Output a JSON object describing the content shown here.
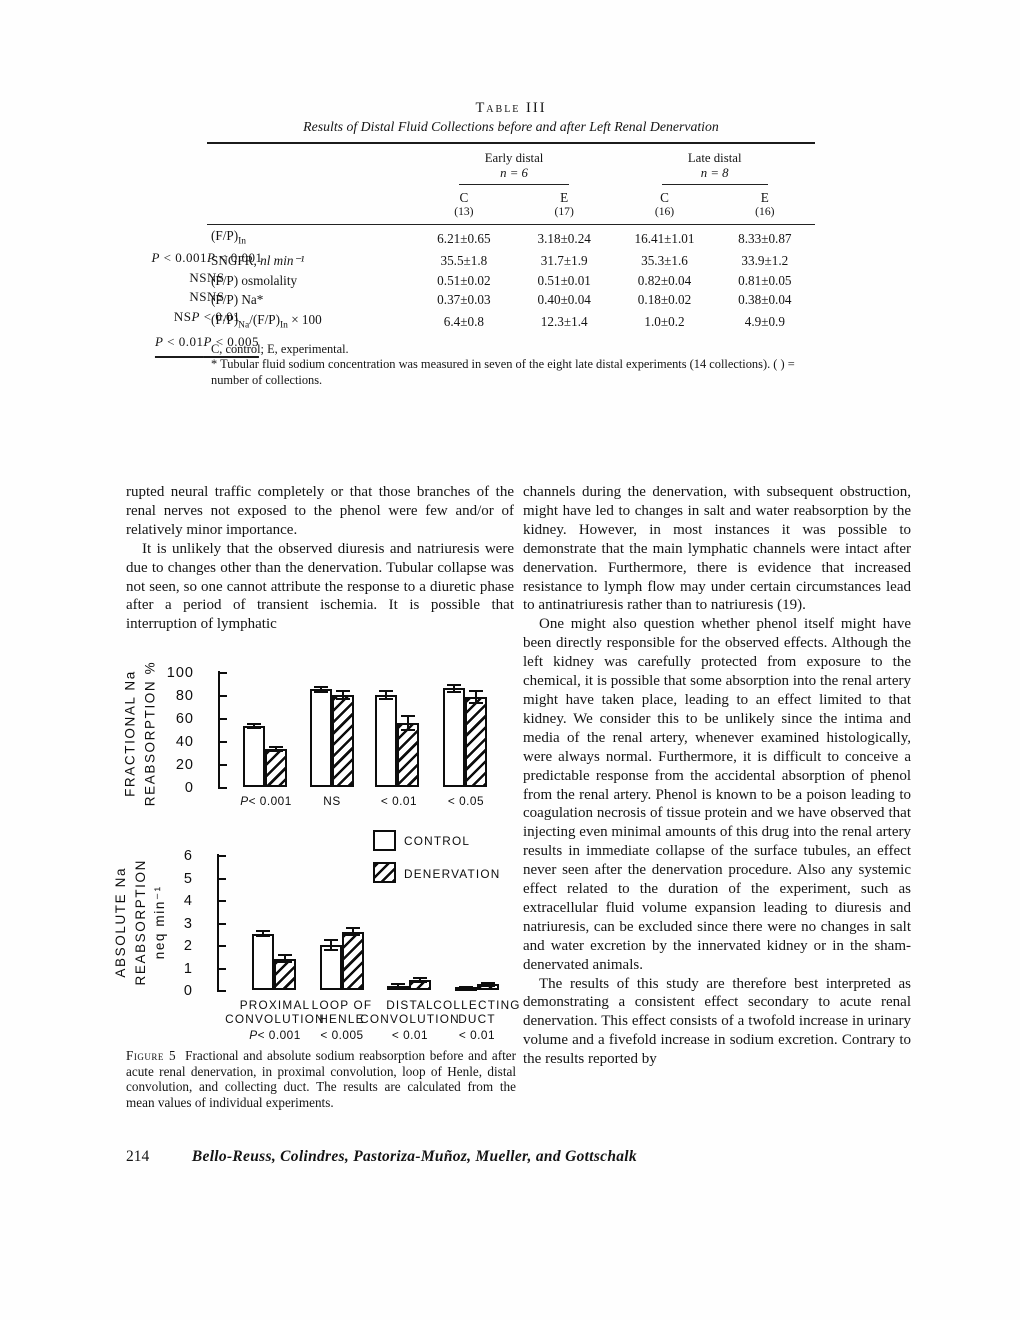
{
  "table": {
    "title": "Table III",
    "subtitle": "Results of Distal Fluid Collections before and after Left Renal Denervation",
    "groups": [
      {
        "label": "Early distal",
        "n": "n = 6"
      },
      {
        "label": "Late distal",
        "n": "n = 8"
      }
    ],
    "col_headers": [
      {
        "letter": "C",
        "count": "(13)"
      },
      {
        "letter": "E",
        "count": "(17)"
      },
      {
        "letter": "C",
        "count": "(16)"
      },
      {
        "letter": "E",
        "count": "(16)"
      }
    ],
    "rows": [
      {
        "label_segments": [
          {
            "t": "(F/P)"
          },
          {
            "t": "In",
            "sub": true
          }
        ],
        "early_c": "6.21±0.65",
        "early_e": "3.18±0.24",
        "early_p": "P < 0.001",
        "late_c": "16.41±1.01",
        "late_e": "8.33±0.87",
        "late_p": "P < 0.001"
      },
      {
        "label_segments": [
          {
            "t": "SNGFR, "
          },
          {
            "t": "nl min⁻¹",
            "it": true
          }
        ],
        "early_c": "35.5±1.8",
        "early_e": "31.7±1.9",
        "early_p": "NS",
        "late_c": "35.3±1.6",
        "late_e": "33.9±1.2",
        "late_p": "NS"
      },
      {
        "label_segments": [
          {
            "t": "(F/P) osmolality"
          }
        ],
        "early_c": "0.51±0.02",
        "early_e": "0.51±0.01",
        "early_p": "NS",
        "late_c": "0.82±0.04",
        "late_e": "0.81±0.05",
        "late_p": "NS"
      },
      {
        "label_segments": [
          {
            "t": "(F/P) Na*"
          }
        ],
        "early_c": "0.37±0.03",
        "early_e": "0.40±0.04",
        "early_p": "NS",
        "late_c": "0.18±0.02",
        "late_e": "0.38±0.04",
        "late_p": "P < 0.01"
      },
      {
        "label_segments": [
          {
            "t": "(F/P)"
          },
          {
            "t": "Na",
            "sub": true
          },
          {
            "t": "/(F/P)"
          },
          {
            "t": "In",
            "sub": true
          },
          {
            "t": " × 100"
          }
        ],
        "early_c": "6.4±0.8",
        "early_e": "12.3±1.4",
        "early_p": "P < 0.01",
        "late_c": "1.0±0.2",
        "late_e": "4.9±0.9",
        "late_p": "P < 0.005"
      }
    ],
    "footnote_line1": "C, control; E, experimental.",
    "footnote_line2": "* Tubular fluid sodium concentration was measured in seven of the eight late distal experiments (14 collections). ( ) = number of collections."
  },
  "body": {
    "left_paragraphs": [
      "rupted neural traffic completely or that those branches of the renal nerves not exposed to the phenol were few and/or of relatively minor importance.",
      "It is unlikely that the observed diuresis and natriuresis were due to changes other than the denervation. Tubular collapse was not seen, so one cannot attribute the response to a diuretic phase after a period of transient ischemia. It is possible that interruption of lymphatic"
    ],
    "right_paragraphs": [
      "channels during the denervation, with subsequent obstruction, might have led to changes in salt and water reabsorption by the kidney. However, in most instances it was possible to demonstrate that the main lymphatic channels were intact after denervation. Furthermore, there is evidence that increased resistance to lymph flow may under certain circumstances lead to antinatriuresis rather than to natriuresis (19).",
      "One might also question whether phenol itself might have been directly responsible for the observed effects. Although the left kidney was carefully protected from exposure to the chemical, it is possible that some absorption into the renal artery might have taken place, leading to an effect limited to that kidney. We consider this to be unlikely since the intima and media of the renal artery, whenever examined histologically, were always normal. Furthermore, it is difficult to conceive a predictable response from the accidental absorption of phenol from the renal artery. Phenol is known to be a poison leading to coagulation necrosis of tissue protein and we have observed that injecting even minimal amounts of this drug into the renal artery results in immediate collapse of the surface tubules, an effect never seen after the denervation procedure. Also any systemic effect related to the duration of the experiment, such as extracellular fluid volume expansion leading to diuresis and natriuresis, can be excluded since there were no changes in salt and water excretion by the innervated kidney or in the sham-denervated animals.",
      "The results of this study are therefore best interpreted as demonstrating a consistent effect secondary to acute renal denervation. This effect consists of a twofold increase in urinary volume and a fivefold increase in sodium excretion. Contrary to the results reported by"
    ]
  },
  "figure_caption": {
    "label": "Figure 5",
    "text": "Fractional and absolute sodium reabsorption before and after acute renal denervation, in proximal convolution, loop of Henle, distal convolution, and collecting duct. The results are calculated from the mean values of individual experiments."
  },
  "footer": {
    "page_number": "214",
    "running_authors": "Bello-Reuss, Colindres, Pastoriza-Muñoz, Mueller, and Gottschalk"
  },
  "chart_data": [
    {
      "type": "bar",
      "title": "",
      "ylabel_lines": [
        "FRACTIONAL Na",
        "REABSORPTION %"
      ],
      "ylim": [
        0,
        100
      ],
      "yticks": [
        0,
        20,
        40,
        60,
        80,
        100
      ],
      "categories": [
        "PROXIMAL CONVOLUTION",
        "LOOP OF HENLE",
        "DISTAL CONVOLUTION",
        "COLLECTING DUCT"
      ],
      "significance": [
        "P< 0.001",
        "NS",
        "< 0.01",
        "< 0.05"
      ],
      "series": [
        {
          "name": "CONTROL",
          "values": [
            53,
            85,
            80,
            86
          ],
          "errors": [
            3,
            3,
            4,
            4
          ]
        },
        {
          "name": "DENERVATION",
          "values": [
            33,
            80,
            56,
            78
          ],
          "errors": [
            3,
            4,
            7,
            6
          ]
        }
      ],
      "legend_position": "none",
      "grid": false
    },
    {
      "type": "bar",
      "title": "",
      "ylabel_lines": [
        "ABSOLUTE Na",
        "REABSORPTION",
        "neq min⁻¹"
      ],
      "ylim": [
        0,
        6
      ],
      "yticks": [
        0,
        1,
        2,
        3,
        4,
        5,
        6
      ],
      "categories": [
        [
          "PROXIMAL",
          "CONVOLUTION"
        ],
        [
          "LOOP OF",
          "HENLE"
        ],
        [
          "DISTAL",
          "CONVOLUTION"
        ],
        [
          "COLLECTING",
          "DUCT"
        ]
      ],
      "significance": [
        "P< 0.001",
        "< 0.005",
        "< 0.01",
        "< 0.01"
      ],
      "series": [
        {
          "name": "CONTROL",
          "values": [
            2.5,
            2.0,
            0.2,
            0.12
          ],
          "errors": [
            0.15,
            0.25,
            0.12,
            0.06
          ]
        },
        {
          "name": "DENERVATION",
          "values": [
            1.4,
            2.6,
            0.45,
            0.25
          ],
          "errors": [
            0.2,
            0.2,
            0.15,
            0.12
          ]
        }
      ],
      "legend": [
        "CONTROL",
        "DENERVATION"
      ],
      "legend_position": "top-right",
      "grid": false
    }
  ]
}
